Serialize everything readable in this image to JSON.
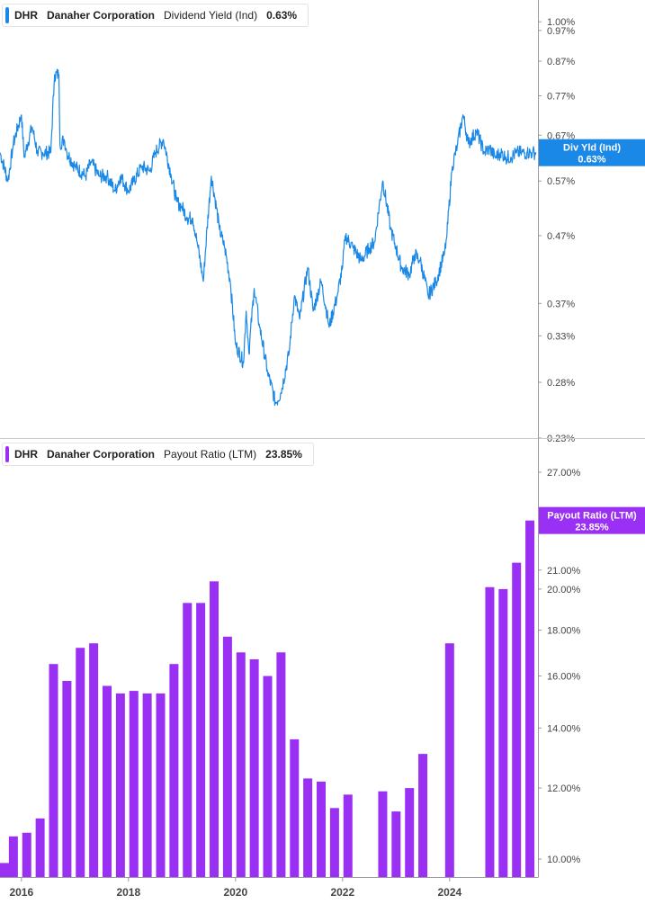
{
  "top_legend": {
    "ticker": "DHR",
    "company": "Danaher Corporation",
    "metric": "Dividend Yield (Ind)",
    "value": "0.63%"
  },
  "bottom_legend": {
    "ticker": "DHR",
    "company": "Danaher Corporation",
    "metric": "Payout Ratio (LTM)",
    "value": "23.85%"
  },
  "colors": {
    "yield_line": "#1a88e6",
    "payout_bar": "#9b30f5",
    "axis": "#9a9a9a",
    "grid_divider": "#cccccc"
  },
  "chart_data": [
    {
      "type": "line",
      "title": "Dividend Yield (Ind)",
      "scale": "log",
      "ylim": [
        0.23,
        1.08
      ],
      "xlim": [
        2015.6,
        2025.65
      ],
      "y_ticks": [
        "1.00%",
        "0.97%",
        "0.87%",
        "0.77%",
        "0.67%",
        "0.57%",
        "0.47%",
        "0.37%",
        "0.33%",
        "0.28%",
        "0.23%"
      ],
      "y_tick_values": [
        1.0,
        0.97,
        0.87,
        0.77,
        0.67,
        0.57,
        0.47,
        0.37,
        0.33,
        0.28,
        0.23
      ],
      "current_tag": {
        "label": "Div Yld (Ind)",
        "value_text": "0.63%",
        "value": 0.63
      },
      "x": [
        2015.6,
        2015.75,
        2015.85,
        2016.0,
        2016.05,
        2016.2,
        2016.3,
        2016.4,
        2016.55,
        2016.62,
        2016.7,
        2016.72,
        2016.8,
        2016.85,
        2017.0,
        2017.2,
        2017.3,
        2017.45,
        2017.6,
        2017.75,
        2017.85,
        2018.0,
        2018.1,
        2018.25,
        2018.4,
        2018.5,
        2018.65,
        2018.8,
        2018.9,
        2019.0,
        2019.1,
        2019.2,
        2019.3,
        2019.4,
        2019.55,
        2019.7,
        2019.8,
        2019.9,
        2020.0,
        2020.15,
        2020.2,
        2020.25,
        2020.35,
        2020.45,
        2020.6,
        2020.75,
        2020.85,
        2021.0,
        2021.1,
        2021.2,
        2021.35,
        2021.45,
        2021.6,
        2021.75,
        2021.9,
        2022.0,
        2022.05,
        2022.2,
        2022.35,
        2022.5,
        2022.6,
        2022.75,
        2022.9,
        2023.0,
        2023.1,
        2023.25,
        2023.35,
        2023.45,
        2023.6,
        2023.75,
        2023.9,
        2023.95,
        2024.05,
        2024.15,
        2024.25,
        2024.35,
        2024.5,
        2024.65,
        2024.75,
        2024.85,
        2024.95,
        2025.05,
        2025.15,
        2025.25,
        2025.35,
        2025.45,
        2025.55,
        2025.62
      ],
      "values": [
        0.63,
        0.57,
        0.65,
        0.72,
        0.62,
        0.69,
        0.63,
        0.63,
        0.63,
        0.83,
        0.83,
        0.65,
        0.66,
        0.63,
        0.6,
        0.58,
        0.61,
        0.58,
        0.58,
        0.55,
        0.58,
        0.55,
        0.57,
        0.6,
        0.59,
        0.63,
        0.66,
        0.58,
        0.53,
        0.52,
        0.5,
        0.5,
        0.45,
        0.4,
        0.58,
        0.48,
        0.45,
        0.4,
        0.32,
        0.3,
        0.36,
        0.31,
        0.39,
        0.34,
        0.29,
        0.26,
        0.27,
        0.31,
        0.38,
        0.35,
        0.42,
        0.36,
        0.4,
        0.34,
        0.38,
        0.42,
        0.47,
        0.45,
        0.43,
        0.45,
        0.46,
        0.57,
        0.48,
        0.45,
        0.42,
        0.41,
        0.44,
        0.43,
        0.38,
        0.4,
        0.44,
        0.47,
        0.6,
        0.65,
        0.72,
        0.65,
        0.68,
        0.63,
        0.64,
        0.62,
        0.63,
        0.62,
        0.62,
        0.63,
        0.63,
        0.63,
        0.63,
        0.63
      ]
    },
    {
      "type": "bar",
      "title": "Payout Ratio (LTM)",
      "scale": "log",
      "ylim": [
        9.55,
        29.0
      ],
      "xlim": [
        2015.6,
        2025.65
      ],
      "y_ticks": [
        "27.00%",
        "21.00%",
        "20.00%",
        "18.00%",
        "16.00%",
        "14.00%",
        "12.00%",
        "10.00%"
      ],
      "y_tick_values": [
        27,
        21,
        20,
        18,
        16,
        14,
        12,
        10
      ],
      "x_ticks": [
        "2016",
        "2018",
        "2020",
        "2022",
        "2024"
      ],
      "x_tick_values": [
        2016,
        2018,
        2020,
        2022,
        2024
      ],
      "current_tag": {
        "label": "Payout Ratio (LTM)",
        "value_text": "23.85%",
        "value": 23.85
      },
      "x": [
        2015.6,
        2015.85,
        2016.1,
        2016.35,
        2016.6,
        2016.85,
        2017.1,
        2017.35,
        2017.6,
        2017.85,
        2018.1,
        2018.35,
        2018.6,
        2018.85,
        2019.1,
        2019.35,
        2019.6,
        2019.85,
        2020.1,
        2020.35,
        2020.6,
        2020.85,
        2021.1,
        2021.35,
        2021.6,
        2021.85,
        2022.1,
        2022.75,
        2023.0,
        2023.25,
        2023.5,
        2024.0,
        2024.75,
        2025.0,
        2025.25,
        2025.5
      ],
      "values": [
        9.9,
        10.6,
        10.7,
        11.1,
        16.5,
        15.8,
        17.2,
        17.4,
        15.6,
        15.3,
        15.4,
        15.3,
        15.3,
        16.5,
        19.3,
        19.3,
        20.4,
        17.7,
        17.0,
        16.7,
        16.0,
        17.0,
        13.6,
        12.3,
        12.2,
        11.4,
        11.8,
        11.9,
        11.3,
        12.0,
        13.1,
        17.4,
        20.1,
        20.0,
        21.4,
        23.85
      ]
    }
  ]
}
